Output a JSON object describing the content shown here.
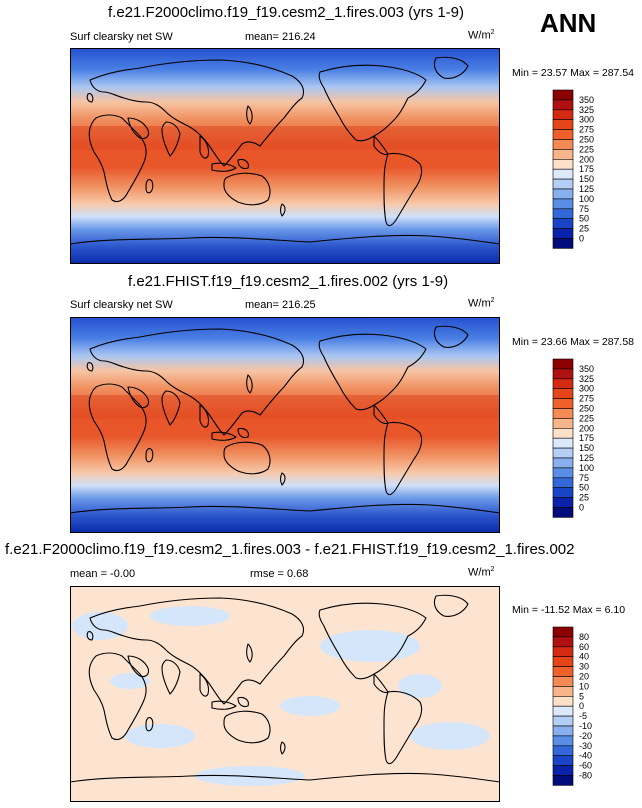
{
  "season": "ANN",
  "unit_base": "W/m",
  "unit_exp": "2",
  "panels": [
    {
      "title": "f.e21.F2000climo.f19_f19.cesm2_1.fires.003 (yrs 1-9)",
      "variable": "Surf clearsky net SW",
      "mean_text": "mean= 216.24",
      "minmax_text": "Min =  23.57 Max = 287.54"
    },
    {
      "title": "f.e21.FHIST.f19_f19.cesm2_1.fires.002 (yrs 1-9)",
      "variable": "Surf clearsky net SW",
      "mean_text": "mean= 216.25",
      "minmax_text": "Min =  23.66 Max = 287.58"
    },
    {
      "title": "f.e21.F2000climo.f19_f19.cesm2_1.fires.003 - f.e21.FHIST.f19_f19.cesm2_1.fires.002",
      "mean_text": "mean =  -0.00",
      "rmse_text": "rmse =   0.68",
      "minmax_text": "Min = -11.52 Max =   6.10"
    }
  ],
  "chart_data": [
    {
      "type": "heatmap",
      "title": "f.e21.F2000climo.f19_f19.cesm2_1.fires.003 (yrs 1-9)",
      "variable": "Surf clearsky net SW",
      "units": "W/m2",
      "mean": 216.24,
      "min": 23.57,
      "max": 287.54,
      "colorbar_levels": [
        "350",
        "325",
        "300",
        "275",
        "250",
        "225",
        "200",
        "175",
        "150",
        "125",
        "100",
        "75",
        "50",
        "25",
        "0"
      ],
      "colorbar_colors": [
        "#8b0000",
        "#b01010",
        "#d42a12",
        "#e6451a",
        "#f0602a",
        "#f58a55",
        "#f8b48a",
        "#fde0c8",
        "#dce9fb",
        "#b4cef5",
        "#88b0ef",
        "#5a8ee6",
        "#3467d9",
        "#1a44c8",
        "#0a22aa",
        "#000c7a"
      ],
      "grid": false,
      "colorbar_placement": "right"
    },
    {
      "type": "heatmap",
      "title": "f.e21.FHIST.f19_f19.cesm2_1.fires.002 (yrs 1-9)",
      "variable": "Surf clearsky net SW",
      "units": "W/m2",
      "mean": 216.25,
      "min": 23.66,
      "max": 287.58,
      "colorbar_levels": [
        "350",
        "325",
        "300",
        "275",
        "250",
        "225",
        "200",
        "175",
        "150",
        "125",
        "100",
        "75",
        "50",
        "25",
        "0"
      ],
      "colorbar_colors": [
        "#8b0000",
        "#b01010",
        "#d42a12",
        "#e6451a",
        "#f0602a",
        "#f58a55",
        "#f8b48a",
        "#fde0c8",
        "#dce9fb",
        "#b4cef5",
        "#88b0ef",
        "#5a8ee6",
        "#3467d9",
        "#1a44c8",
        "#0a22aa",
        "#000c7a"
      ],
      "grid": false,
      "colorbar_placement": "right"
    },
    {
      "type": "heatmap",
      "title": "f.e21.F2000climo.f19_f19.cesm2_1.fires.003 - f.e21.FHIST.f19_f19.cesm2_1.fires.002",
      "units": "W/m2",
      "mean": -0.0,
      "rmse": 0.68,
      "min": -11.52,
      "max": 6.1,
      "colorbar_levels": [
        "80",
        "60",
        "40",
        "30",
        "20",
        "10",
        "5",
        "0",
        "-5",
        "-10",
        "-20",
        "-30",
        "-40",
        "-60",
        "-80"
      ],
      "colorbar_colors": [
        "#8b0000",
        "#b01010",
        "#d42a12",
        "#e6451a",
        "#f0602a",
        "#f58a55",
        "#f8b48a",
        "#fde0c8",
        "#dce9fb",
        "#b4cef5",
        "#88b0ef",
        "#5a8ee6",
        "#3467d9",
        "#1a44c8",
        "#0a22aa",
        "#000c7a"
      ],
      "grid": false,
      "colorbar_placement": "right"
    }
  ]
}
